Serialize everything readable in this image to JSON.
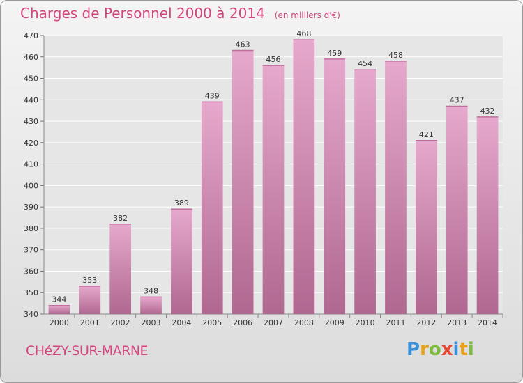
{
  "header": {
    "title": "Charges de Personnel 2000 à 2014",
    "unit_note": "(en milliers d'€)"
  },
  "footer": {
    "place": "CHéZY-SUR-MARNE",
    "logo_text": "Proxiti"
  },
  "colors": {
    "accent": "#d4457f",
    "bar_top": "#e6a8cc",
    "bar_bottom": "#b06891"
  },
  "chart_data": {
    "type": "bar",
    "title": "Charges de Personnel 2000 à 2014",
    "subtitle": "(en milliers d'€)",
    "xlabel": "",
    "ylabel": "",
    "categories": [
      "2000",
      "2001",
      "2002",
      "2003",
      "2004",
      "2005",
      "2006",
      "2007",
      "2008",
      "2009",
      "2010",
      "2011",
      "2012",
      "2013",
      "2014"
    ],
    "values": [
      344,
      353,
      382,
      348,
      389,
      439,
      463,
      456,
      468,
      459,
      454,
      458,
      421,
      437,
      432
    ],
    "ylim": [
      340,
      470
    ],
    "yticks": [
      340,
      350,
      360,
      370,
      380,
      390,
      400,
      410,
      420,
      430,
      440,
      450,
      460,
      470
    ],
    "grid": true,
    "data_labels": true
  }
}
